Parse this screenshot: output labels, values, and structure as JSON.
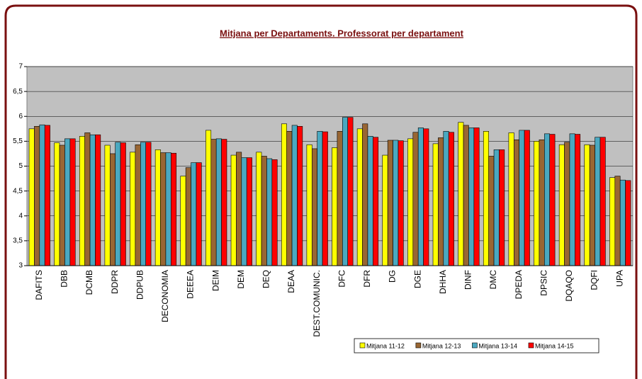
{
  "chart_data": {
    "type": "bar",
    "title": "Mitjana per Departaments. Professorat per departament",
    "categories": [
      "DAFITS",
      "DBB",
      "DCMB",
      "DDPR",
      "DDPUB",
      "DECONOMIA",
      "DEEEA",
      "DEIM",
      "DEM",
      "DEQ",
      "DEAA",
      "DEST.COMUNIC.",
      "DFC",
      "DFR",
      "DG",
      "DGE",
      "DHHA",
      "DINF",
      "DMC",
      "DPEDA",
      "DPSIC",
      "DQAQO",
      "DQFI",
      "UPA"
    ],
    "series": [
      {
        "name": "Mitjana 11-12",
        "color": "#ffff00",
        "values": [
          5.75,
          5.47,
          5.6,
          5.42,
          5.28,
          5.33,
          4.8,
          5.72,
          5.22,
          5.28,
          5.85,
          5.43,
          5.37,
          5.75,
          5.22,
          5.55,
          5.45,
          5.88,
          5.7,
          5.67,
          5.5,
          5.43,
          5.43,
          4.77
        ]
      },
      {
        "name": "Mitjana 12-13",
        "color": "#996633",
        "values": [
          5.8,
          5.42,
          5.67,
          5.25,
          5.43,
          5.27,
          4.97,
          5.54,
          5.28,
          5.2,
          5.7,
          5.35,
          5.7,
          5.85,
          5.52,
          5.68,
          5.57,
          5.82,
          5.2,
          5.53,
          5.53,
          5.48,
          5.42,
          4.8
        ]
      },
      {
        "name": "Mitjana 13-14",
        "color": "#4aa8c0",
        "values": [
          5.83,
          5.55,
          5.63,
          5.48,
          5.48,
          5.27,
          5.07,
          5.55,
          5.17,
          5.15,
          5.82,
          5.7,
          5.98,
          5.6,
          5.52,
          5.77,
          5.7,
          5.77,
          5.33,
          5.72,
          5.65,
          5.65,
          5.58,
          4.72
        ]
      },
      {
        "name": "Mitjana 14-15",
        "color": "#ff0000",
        "values": [
          5.82,
          5.55,
          5.63,
          5.47,
          5.48,
          5.26,
          5.07,
          5.54,
          5.17,
          5.13,
          5.8,
          5.69,
          5.98,
          5.58,
          5.51,
          5.75,
          5.68,
          5.77,
          5.33,
          5.72,
          5.64,
          5.64,
          5.58,
          4.71
        ]
      }
    ],
    "ylim": [
      3,
      7
    ],
    "yticks": [
      3,
      {
        "value": 3.5,
        "label": "3,5"
      },
      4,
      {
        "value": 4.5,
        "label": "4,5"
      },
      5,
      {
        "value": 5.5,
        "label": "5,5"
      },
      6,
      {
        "value": 6.5,
        "label": "6,5"
      },
      7
    ],
    "grid": true,
    "legend": "bottom-right"
  }
}
